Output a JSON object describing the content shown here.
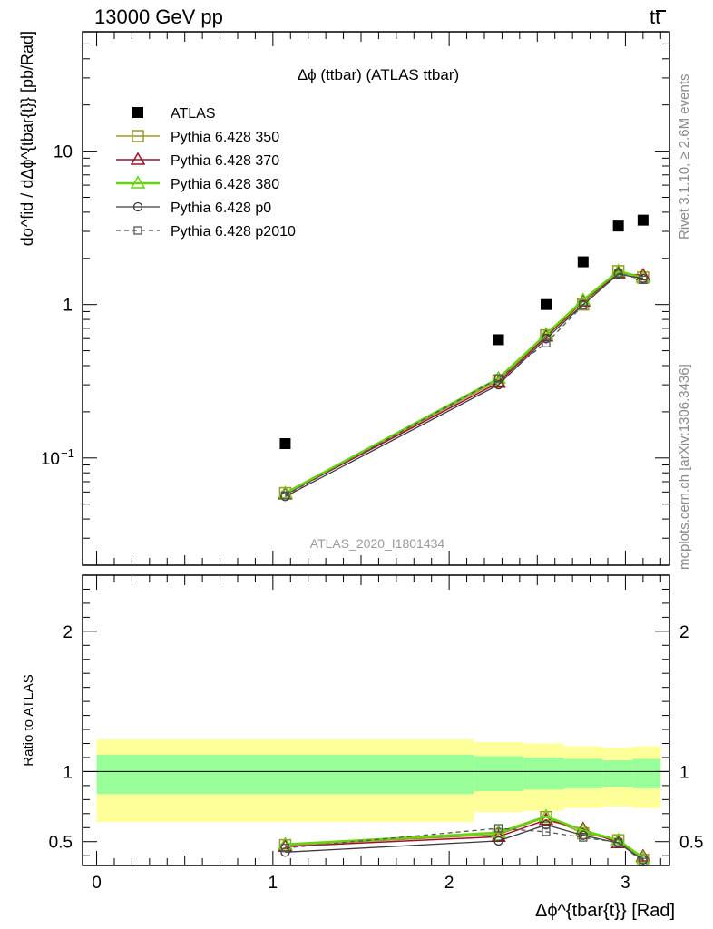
{
  "header": {
    "left": "13000 GeV pp",
    "right": "tt"
  },
  "side_labels": {
    "rivet": "Rivet 3.1.10, ≥ 2.6M events",
    "mcplots": "mcplots.cern.ch [arXiv:1306.3436]"
  },
  "chart_data": [
    {
      "type": "scatter",
      "title": "Δϕ (ttbar) (ATLAS ttbar)",
      "watermark": "ATLAS_2020_I1801434",
      "ylabel": "dσ^fid / dΔϕ^{tbar{t}} [pb/Rad]",
      "yscale": "log",
      "ylim": [
        0.02,
        60
      ],
      "xlim": [
        -0.08,
        3.25
      ],
      "y_ticks": [
        {
          "value": 0.1,
          "label": "10",
          "exp": "−1"
        },
        {
          "value": 1,
          "label": "1"
        },
        {
          "value": 10,
          "label": "10"
        }
      ],
      "x": [
        1.07,
        2.28,
        2.55,
        2.76,
        2.96,
        3.1
      ],
      "series": [
        {
          "name": "ATLAS",
          "color": "#000000",
          "marker": "filled-square",
          "line": "none",
          "values": [
            0.124,
            0.59,
            1.0,
            1.9,
            3.25,
            3.55
          ]
        },
        {
          "name": "Pythia 6.428 350",
          "color": "#9a9a2a",
          "marker": "open-square",
          "line": "solid",
          "values": [
            0.059,
            0.32,
            0.63,
            1.0,
            1.65,
            1.5
          ]
        },
        {
          "name": "Pythia 6.428 370",
          "color": "#a0102a",
          "marker": "open-triangle",
          "line": "solid",
          "values": [
            0.058,
            0.31,
            0.62,
            1.05,
            1.6,
            1.55
          ]
        },
        {
          "name": "Pythia 6.428 380",
          "color": "#66d40f",
          "marker": "open-triangle",
          "line": "solid",
          "values": [
            0.059,
            0.33,
            0.64,
            1.07,
            1.65,
            1.5
          ]
        },
        {
          "name": "Pythia 6.428 p0",
          "color": "#3a3a3a",
          "marker": "open-circle",
          "line": "solid",
          "values": [
            0.056,
            0.3,
            0.6,
            1.0,
            1.58,
            1.48
          ]
        },
        {
          "name": "Pythia 6.428 p2010",
          "color": "#555555",
          "marker": "open-square-small",
          "line": "dashed",
          "values": [
            0.057,
            0.33,
            0.56,
            0.99,
            1.6,
            1.45
          ]
        }
      ]
    },
    {
      "type": "line",
      "ylabel": "Ratio to ATLAS",
      "xlabel": "Δϕ^{tbar{t}} [Rad]",
      "ylim": [
        0.33,
        2.4
      ],
      "xlim": [
        -0.08,
        3.25
      ],
      "y_ticks": [
        0.5,
        1,
        2
      ],
      "x_ticks": [
        0,
        1,
        2,
        3
      ],
      "bins": [
        0,
        2.14,
        2.42,
        2.65,
        2.87,
        3.04,
        3.2
      ],
      "band_yellow": [
        [
          0.64,
          1.23
        ],
        [
          0.71,
          1.21
        ],
        [
          0.72,
          1.2
        ],
        [
          0.74,
          1.18
        ],
        [
          0.75,
          1.17
        ],
        [
          0.74,
          1.18
        ]
      ],
      "band_green": [
        [
          0.84,
          1.12
        ],
        [
          0.86,
          1.11
        ],
        [
          0.87,
          1.1
        ],
        [
          0.88,
          1.09
        ],
        [
          0.89,
          1.08
        ],
        [
          0.88,
          1.09
        ]
      ],
      "x": [
        1.07,
        2.28,
        2.55,
        2.76,
        2.96,
        3.1
      ],
      "series": [
        {
          "name": "Pythia 6.428 350",
          "values": [
            0.475,
            0.55,
            0.675,
            0.56,
            0.51,
            0.37
          ]
        },
        {
          "name": "Pythia 6.428 370",
          "values": [
            0.465,
            0.535,
            0.655,
            0.59,
            0.49,
            0.395
          ]
        },
        {
          "name": "Pythia 6.428 380",
          "values": [
            0.48,
            0.565,
            0.68,
            0.58,
            0.51,
            0.385
          ]
        },
        {
          "name": "Pythia 6.428 p0",
          "values": [
            0.425,
            0.505,
            0.62,
            0.545,
            0.49,
            0.37
          ]
        },
        {
          "name": "Pythia 6.428 p2010",
          "values": [
            0.455,
            0.595,
            0.57,
            0.53,
            0.495,
            0.355
          ]
        }
      ]
    }
  ]
}
